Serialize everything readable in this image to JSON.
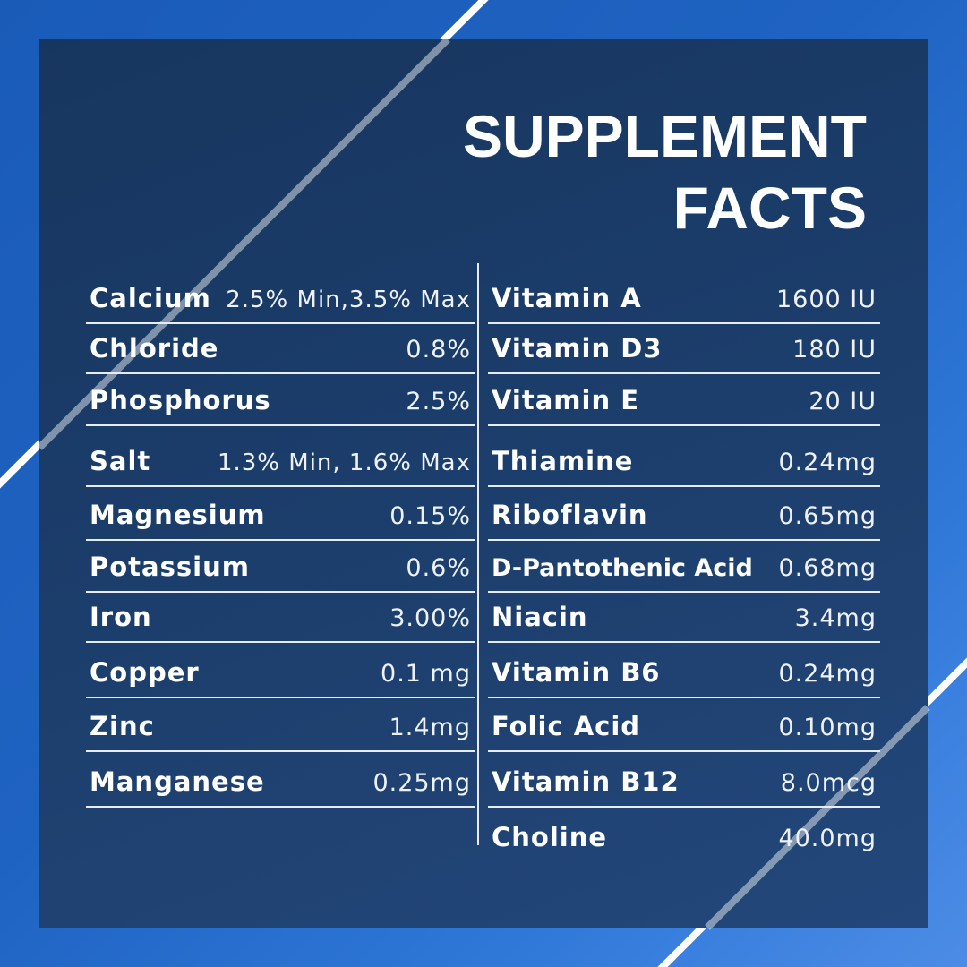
{
  "title": {
    "line1": "SUPPLEMENT",
    "line2": "FACTS"
  },
  "colors": {
    "background": "#1f63c2",
    "panel": "#1c3e6c",
    "text": "#ffffff",
    "lines": "#e8edf5"
  },
  "left_column": [
    {
      "name": "Calcium",
      "value": "2.5% Min,3.5% Max"
    },
    {
      "name": "Chloride",
      "value": "0.8%"
    },
    {
      "name": "Phosphorus",
      "value": "2.5%"
    },
    {
      "name": "Salt",
      "value": "1.3% Min, 1.6% Max"
    },
    {
      "name": "Magnesium",
      "value": "0.15%"
    },
    {
      "name": "Potassium",
      "value": "0.6%"
    },
    {
      "name": "Iron",
      "value": "3.00%"
    },
    {
      "name": "Copper",
      "value": "0.1 mg"
    },
    {
      "name": "Zinc",
      "value": "1.4mg"
    },
    {
      "name": "Manganese",
      "value": "0.25mg"
    }
  ],
  "right_column": [
    {
      "name": "Vitamin A",
      "value": "1600 IU"
    },
    {
      "name": "Vitamin D3",
      "value": "180 IU"
    },
    {
      "name": "Vitamin E",
      "value": "20 IU"
    },
    {
      "name": "Thiamine",
      "value": "0.24mg"
    },
    {
      "name": "Riboflavin",
      "value": "0.65mg"
    },
    {
      "name": "D-Pantothenic Acid",
      "value": "0.68mg"
    },
    {
      "name": "Niacin",
      "value": "3.4mg"
    },
    {
      "name": "Vitamin B6",
      "value": "0.24mg"
    },
    {
      "name": "Folic Acid",
      "value": "0.10mg"
    },
    {
      "name": "Vitamin B12",
      "value": "8.0mcg"
    },
    {
      "name": "Choline",
      "value": "40.0mg"
    }
  ]
}
